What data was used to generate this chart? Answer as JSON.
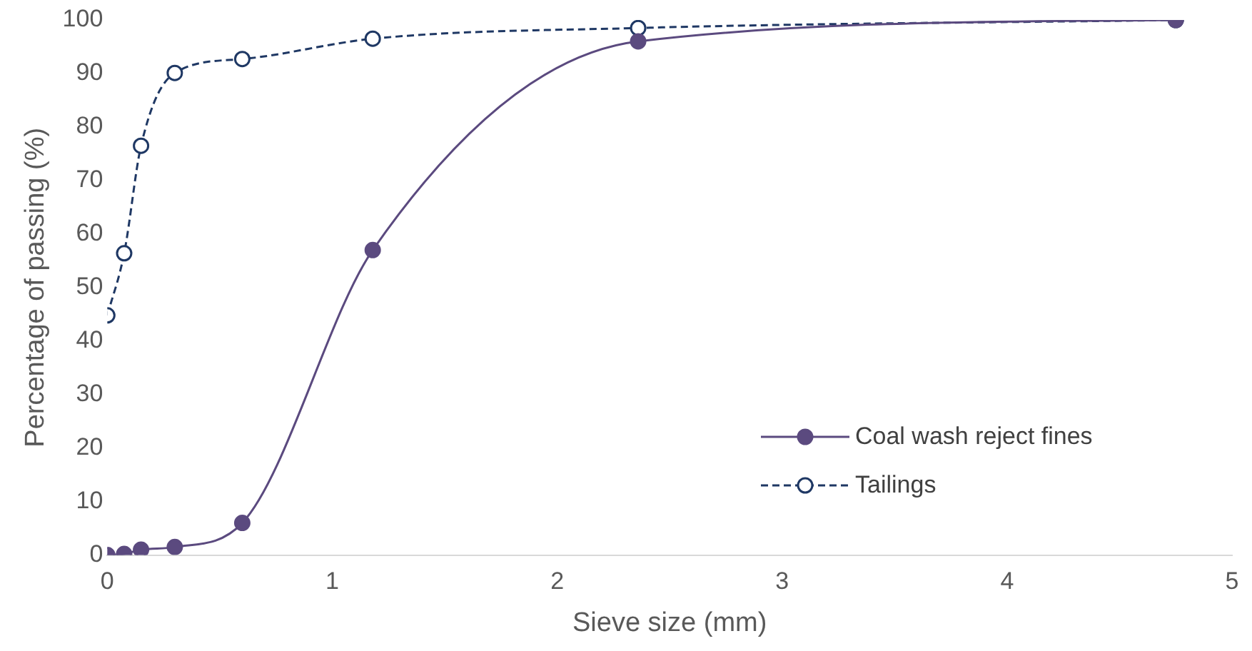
{
  "chart_data": {
    "type": "line",
    "xlabel": "Sieve size (mm)",
    "ylabel": "Percentage of passing (%)",
    "xlim": [
      0,
      5
    ],
    "xticks": [
      0,
      1,
      2,
      3,
      4,
      5
    ],
    "ylim": [
      0,
      100
    ],
    "yticks": [
      0,
      10,
      20,
      30,
      40,
      50,
      60,
      70,
      80,
      90,
      100
    ],
    "x": [
      0,
      0.075,
      0.15,
      0.3,
      0.6,
      1.18,
      2.36,
      4.75
    ],
    "series": [
      {
        "name": "Coal wash reject fines",
        "color": "#5b4a7f",
        "values": [
          0,
          0.2,
          1,
          1.5,
          6,
          57,
          96,
          100
        ],
        "marker": "circle",
        "line_style": "solid"
      },
      {
        "name": "Tailings",
        "color": "#1f3864",
        "values": [
          44.8,
          56.4,
          76.5,
          90.1,
          92.7,
          96.5,
          98.5,
          100
        ],
        "marker": "circle",
        "line_style": "dashed"
      }
    ],
    "grid": false,
    "legend": "bottom right"
  }
}
